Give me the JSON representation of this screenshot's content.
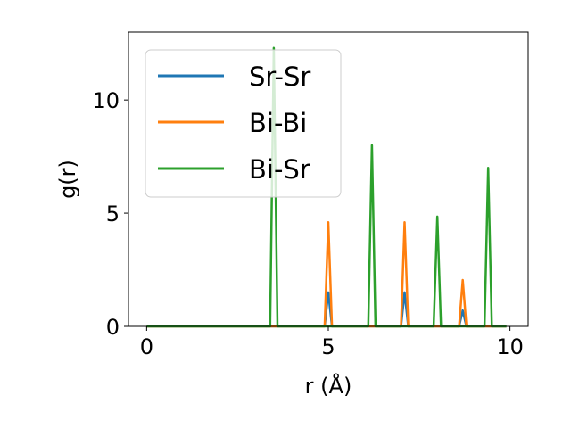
{
  "chart_data": {
    "type": "line",
    "title": "",
    "xlabel": "r (Å)",
    "ylabel": "g(r)",
    "xlim": [
      -0.5,
      10.5
    ],
    "ylim": [
      0,
      13
    ],
    "xticks": [
      0,
      5,
      10
    ],
    "yticks": [
      0,
      5,
      10
    ],
    "grid": false,
    "legend_placement": "top-left",
    "series": [
      {
        "name": "Sr-Sr",
        "color": "#1f77b4",
        "points": [
          [
            0,
            0
          ],
          [
            4.9,
            0
          ],
          [
            5.0,
            1.5
          ],
          [
            5.1,
            0
          ],
          [
            7.0,
            0
          ],
          [
            7.1,
            1.5
          ],
          [
            7.2,
            0
          ],
          [
            8.6,
            0
          ],
          [
            8.7,
            0.7
          ],
          [
            8.8,
            0
          ],
          [
            9.9,
            0
          ]
        ]
      },
      {
        "name": "Bi-Bi",
        "color": "#ff7f0e",
        "points": [
          [
            0,
            0
          ],
          [
            4.9,
            0
          ],
          [
            5.0,
            4.6
          ],
          [
            5.1,
            0
          ],
          [
            7.0,
            0
          ],
          [
            7.1,
            4.6
          ],
          [
            7.2,
            0
          ],
          [
            8.6,
            0
          ],
          [
            8.7,
            2.05
          ],
          [
            8.8,
            0
          ],
          [
            9.9,
            0
          ]
        ]
      },
      {
        "name": "Bi-Sr",
        "color": "#2ca02c",
        "points": [
          [
            0,
            0
          ],
          [
            3.4,
            0
          ],
          [
            3.5,
            12.3
          ],
          [
            3.6,
            0
          ],
          [
            6.1,
            0
          ],
          [
            6.2,
            8.0
          ],
          [
            6.3,
            0
          ],
          [
            7.9,
            0
          ],
          [
            8.0,
            4.85
          ],
          [
            8.1,
            0
          ],
          [
            9.3,
            0
          ],
          [
            9.4,
            7.0
          ],
          [
            9.5,
            0
          ],
          [
            9.9,
            0
          ]
        ]
      }
    ]
  }
}
